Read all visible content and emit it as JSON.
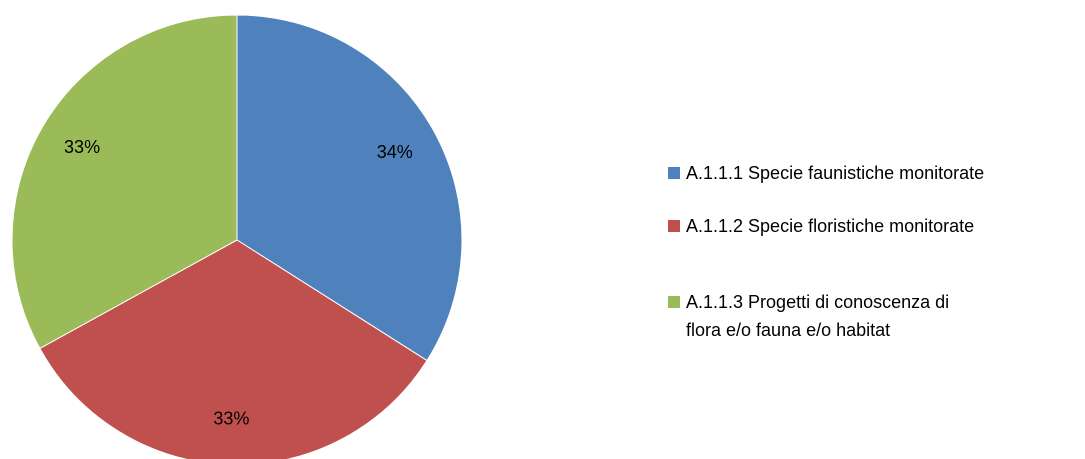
{
  "chart_data": {
    "type": "pie",
    "categories": [
      "A.1.1.1 Specie faunistiche monitorate",
      "A.1.1.2 Specie floristiche monitorate",
      "A.1.1.3 Progetti di conoscenza di flora e/o fauna e/o habitat"
    ],
    "values": [
      34,
      33,
      33
    ],
    "value_labels": [
      "34%",
      "33%",
      "33%"
    ],
    "colors": [
      "#4f81bd",
      "#c0504d",
      "#9bbb59"
    ],
    "legend": "right"
  }
}
